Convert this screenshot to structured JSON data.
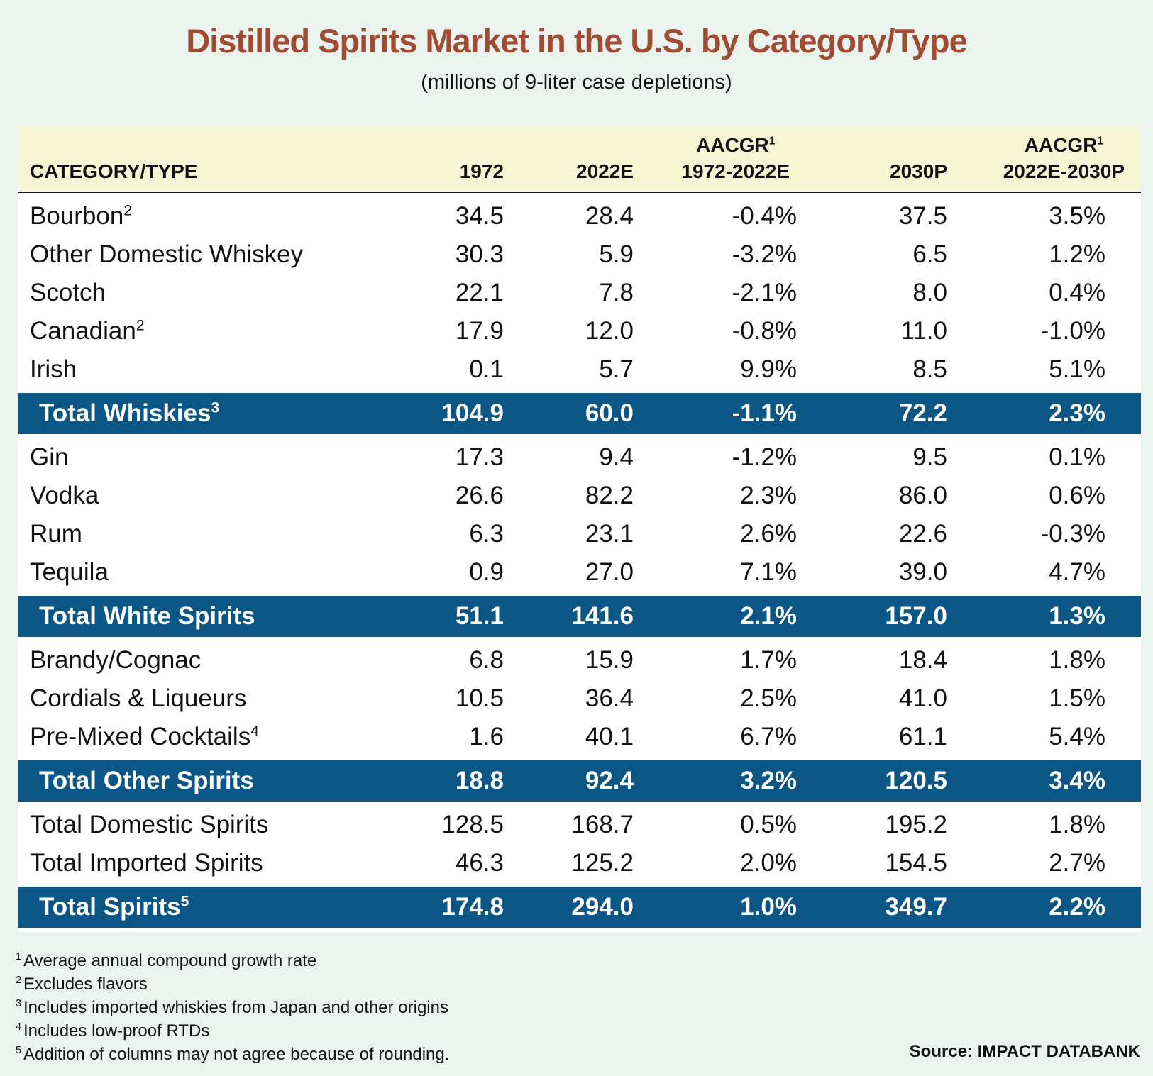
{
  "title": "Distilled Spirits Market in the U.S. by Category/Type",
  "subtitle": "(millions of 9-liter case depletions)",
  "chart_data": {
    "type": "table",
    "columns": [
      {
        "label": "CATEGORY/TYPE"
      },
      {
        "label": "1972"
      },
      {
        "label": "2022E"
      },
      {
        "label": "AACGR",
        "sup": "1",
        "label2": "1972-2022E"
      },
      {
        "label": "2030P"
      },
      {
        "label": "AACGR",
        "sup": "1",
        "label2": "2022E-2030P"
      }
    ],
    "rows": [
      {
        "name": "Bourbon",
        "sup": "2",
        "values": [
          "34.5",
          "28.4",
          "-0.4%",
          "37.5",
          "3.5%"
        ],
        "total": false
      },
      {
        "name": "Other Domestic Whiskey",
        "sup": "",
        "values": [
          "30.3",
          "5.9",
          "-3.2%",
          "6.5",
          "1.2%"
        ],
        "total": false
      },
      {
        "name": "Scotch",
        "sup": "",
        "values": [
          "22.1",
          "7.8",
          "-2.1%",
          "8.0",
          "0.4%"
        ],
        "total": false
      },
      {
        "name": "Canadian",
        "sup": "2",
        "values": [
          "17.9",
          "12.0",
          "-0.8%",
          "11.0",
          "-1.0%"
        ],
        "total": false
      },
      {
        "name": "Irish",
        "sup": "",
        "values": [
          "0.1",
          "5.7",
          "9.9%",
          "8.5",
          "5.1%"
        ],
        "total": false
      },
      {
        "name": "Total Whiskies",
        "sup": "3",
        "values": [
          "104.9",
          "60.0",
          "-1.1%",
          "72.2",
          "2.3%"
        ],
        "total": true
      },
      {
        "name": "Gin",
        "sup": "",
        "values": [
          "17.3",
          "9.4",
          "-1.2%",
          "9.5",
          "0.1%"
        ],
        "total": false
      },
      {
        "name": "Vodka",
        "sup": "",
        "values": [
          "26.6",
          "82.2",
          "2.3%",
          "86.0",
          "0.6%"
        ],
        "total": false
      },
      {
        "name": "Rum",
        "sup": "",
        "values": [
          "6.3",
          "23.1",
          "2.6%",
          "22.6",
          "-0.3%"
        ],
        "total": false
      },
      {
        "name": "Tequila",
        "sup": "",
        "values": [
          "0.9",
          "27.0",
          "7.1%",
          "39.0",
          "4.7%"
        ],
        "total": false
      },
      {
        "name": "Total White Spirits",
        "sup": "",
        "values": [
          "51.1",
          "141.6",
          "2.1%",
          "157.0",
          "1.3%"
        ],
        "total": true
      },
      {
        "name": "Brandy/Cognac",
        "sup": "",
        "values": [
          "6.8",
          "15.9",
          "1.7%",
          "18.4",
          "1.8%"
        ],
        "total": false
      },
      {
        "name": "Cordials & Liqueurs",
        "sup": "",
        "values": [
          "10.5",
          "36.4",
          "2.5%",
          "41.0",
          "1.5%"
        ],
        "total": false
      },
      {
        "name": "Pre-Mixed Cocktails",
        "sup": "4",
        "values": [
          "1.6",
          "40.1",
          "6.7%",
          "61.1",
          "5.4%"
        ],
        "total": false
      },
      {
        "name": "Total Other Spirits",
        "sup": "",
        "values": [
          "18.8",
          "92.4",
          "3.2%",
          "120.5",
          "3.4%"
        ],
        "total": true
      },
      {
        "name": "Total Domestic Spirits",
        "sup": "",
        "values": [
          "128.5",
          "168.7",
          "0.5%",
          "195.2",
          "1.8%"
        ],
        "total": false
      },
      {
        "name": "Total Imported Spirits",
        "sup": "",
        "values": [
          "46.3",
          "125.2",
          "2.0%",
          "154.5",
          "2.7%"
        ],
        "total": false
      },
      {
        "name": "Total Spirits",
        "sup": "5",
        "values": [
          "174.8",
          "294.0",
          "1.0%",
          "349.7",
          "2.2%"
        ],
        "total": true
      }
    ]
  },
  "footnotes": [
    {
      "num": "1",
      "text": "Average annual compound growth rate"
    },
    {
      "num": "2",
      "text": "Excludes flavors"
    },
    {
      "num": "3",
      "text": "Includes imported whiskies from Japan and other origins"
    },
    {
      "num": "4",
      "text": "Includes low-proof RTDs"
    },
    {
      "num": "5",
      "text": "Addition of columns may not agree because of rounding."
    }
  ],
  "source": "Source: IMPACT DATABANK",
  "colors": {
    "title": "#a24b33",
    "header_bg": "#f6f6d4",
    "total_row_bg": "#0b5685",
    "page_bg": "#eaf3ee"
  }
}
